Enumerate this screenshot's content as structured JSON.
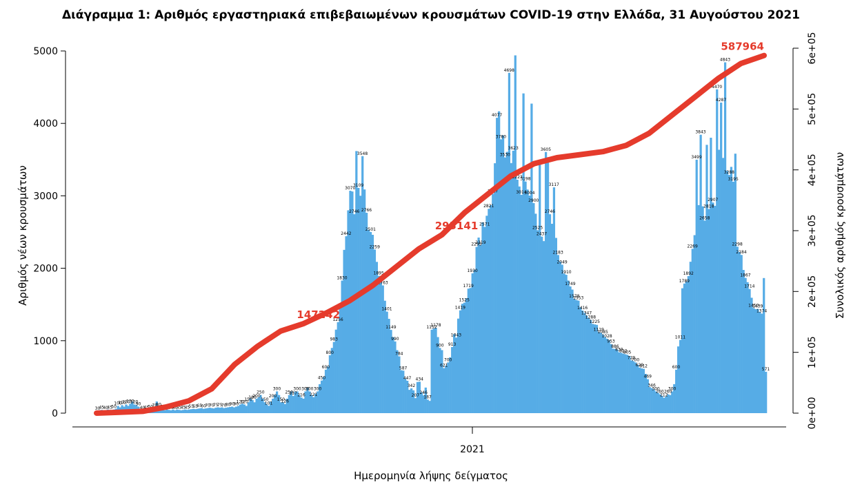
{
  "chart_data": {
    "type": "bar",
    "title": "Διάγραμμα 1: Αριθμός εργαστηριακά επιβεβαιωμένων κρουσμάτων COVID-19 στην Ελλάδα, 31 Αυγούστου 2021",
    "xlabel": "Ημερομηνία λήψης δείγματος",
    "ylabel": "Αριθμός νέων κρουσμάτων",
    "y2label": "Συνολικός αριθμός κρουσμάτων",
    "x_tick_labels": [
      "2021"
    ],
    "y_ticks": [
      "0",
      "1000",
      "2000",
      "3000",
      "4000",
      "5000"
    ],
    "y2_ticks": [
      "0e+00",
      "1e+05",
      "2e+05",
      "3e+05",
      "4e+05",
      "5e+05",
      "6e+05"
    ],
    "ylim": [
      0,
      5000
    ],
    "y2lim": [
      0,
      600000
    ],
    "colors": {
      "bars": "#56ACE6",
      "line": "#E53B2C",
      "label": "#E53B2C"
    },
    "series": [
      {
        "type": "bar",
        "values": [
          30,
          40,
          45,
          35,
          40,
          50,
          45,
          40,
          50,
          60,
          100,
          80,
          110,
          90,
          120,
          100,
          130,
          160,
          120,
          110,
          90,
          60,
          40,
          50,
          45,
          40,
          50,
          60,
          70,
          161,
          80,
          60,
          50,
          40,
          50,
          45,
          40,
          50,
          40,
          50,
          45,
          40,
          45,
          50,
          45,
          50,
          55,
          60,
          55,
          60,
          65,
          70,
          60,
          65,
          70,
          75,
          70,
          65,
          75,
          80,
          75,
          80,
          70,
          75,
          80,
          85,
          90,
          80,
          90,
          100,
          120,
          130,
          120,
          100,
          150,
          200,
          180,
          150,
          200,
          220,
          250,
          200,
          150,
          120,
          101,
          160,
          200,
          250,
          300,
          250,
          150,
          150,
          126,
          200,
          250,
          300,
          237,
          300,
          300,
          250,
          216,
          200,
          300,
          350,
          300,
          250,
          221,
          268,
          300,
          400,
          450,
          500,
          600,
          642,
          800,
          900,
          983,
          1153,
          1256,
          1483,
          1830,
          2254,
          2442,
          2800,
          3070,
          3060,
          2746,
          3618,
          3109,
          3001,
          3548,
          3088,
          2766,
          2531,
          2501,
          2462,
          2259,
          2088,
          1895,
          1842,
          1763,
          1552,
          1401,
          1302,
          1149,
          1050,
          990,
          870,
          784,
          593,
          587,
          473,
          447,
          322,
          342,
          315,
          207,
          430,
          434,
          286,
          246,
          353,
          187,
          169,
          1152,
          1168,
          1178,
          1050,
          900,
          870,
          621,
          657,
          700,
          770,
          913,
          1090,
          1043,
          1305,
          1419,
          1510,
          1525,
          1587,
          1719,
          1728,
          1930,
          1979,
          2295,
          2424,
          2319,
          2635,
          2571,
          2725,
          2821,
          2871,
          3027,
          3450,
          4077,
          4167,
          3780,
          3834,
          3530,
          3607,
          4698,
          3452,
          3623,
          4939,
          3223,
          3129,
          3014,
          4414,
          3198,
          3087,
          3004,
          4273,
          2900,
          2753,
          2525,
          3458,
          2437,
          2375,
          3605,
          3533,
          2746,
          2614,
          3117,
          2419,
          2183,
          2090,
          2049,
          1926,
          1910,
          1831,
          1749,
          1706,
          1578,
          1561,
          1553,
          1461,
          1416,
          1384,
          1347,
          1313,
          1288,
          1232,
          1225,
          1219,
          1119,
          1110,
          1085,
          1051,
          1028,
          1006,
          953,
          890,
          886,
          877,
          839,
          833,
          822,
          813,
          805,
          787,
          729,
          718,
          700,
          669,
          629,
          618,
          612,
          542,
          469,
          360,
          346,
          330,
          300,
          280,
          260,
          240,
          212,
          230,
          260,
          250,
          300,
          400,
          600,
          921,
          1011,
          1724,
          1789,
          1818,
          1892,
          2090,
          2269,
          2457,
          3499,
          2872,
          3843,
          2855,
          2658,
          3704,
          2818,
          3802,
          2907,
          2862,
          4470,
          3636,
          4287,
          3523,
          4843,
          3345,
          3288,
          3400,
          3195,
          3582,
          2298,
          2225,
          2184,
          1977,
          1867,
          1808,
          1714,
          1593,
          1450,
          1436,
          1439,
          1398,
          1374,
          1865,
          571
        ]
      },
      {
        "type": "line",
        "name": "",
        "values": [
          0,
          1500,
          3000,
          10000,
          20000,
          40000,
          80000,
          110000,
          135000,
          147242,
          165000,
          185000,
          210000,
          240000,
          270000,
          293141,
          330000,
          360000,
          390000,
          410000,
          420000,
          425000,
          430000,
          440000,
          460000,
          490000,
          520000,
          550000,
          575000,
          587964
        ]
      }
    ],
    "annotations": [
      "147242",
      "293141",
      "587964"
    ]
  }
}
